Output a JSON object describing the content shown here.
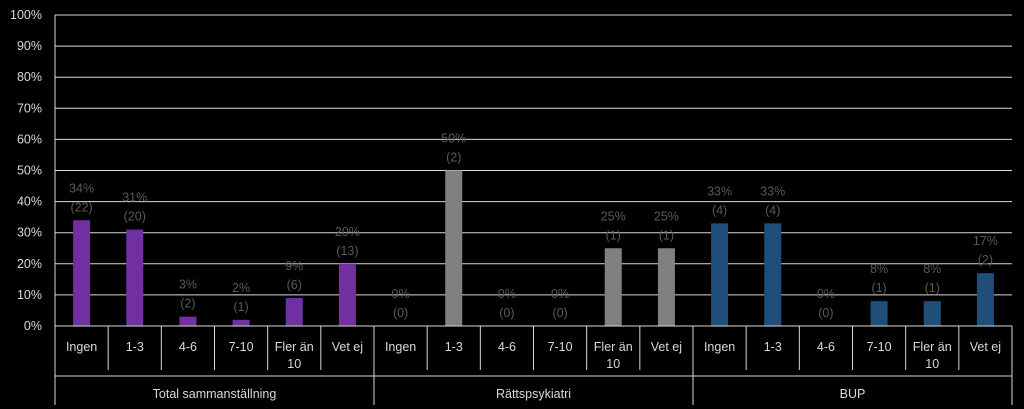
{
  "chart_data": {
    "type": "bar",
    "title": "",
    "xlabel": "",
    "ylabel": "",
    "ylim": [
      0,
      100
    ],
    "y_ticks": [
      "0%",
      "10%",
      "20%",
      "30%",
      "40%",
      "50%",
      "60%",
      "70%",
      "80%",
      "90%",
      "100%"
    ],
    "grid": true,
    "legend": "none",
    "groups": [
      {
        "name": "Total sammanställning",
        "color": "#7030a0",
        "categories": [
          "Ingen",
          "1-3",
          "4-6",
          "7-10",
          "Fler än\n10",
          "Vet ej"
        ],
        "values": [
          34,
          31,
          3,
          2,
          9,
          20
        ],
        "labels": [
          "34%",
          "31%",
          "3%",
          "2%",
          "9%",
          "20%"
        ],
        "counts": [
          "(22)",
          "(20)",
          "(2)",
          "(1)",
          "(6)",
          "(13)"
        ]
      },
      {
        "name": "Rättspsykiatri",
        "color": "#808080",
        "categories": [
          "Ingen",
          "1-3",
          "4-6",
          "7-10",
          "Fler än\n10",
          "Vet ej"
        ],
        "values": [
          0,
          50,
          0,
          0,
          25,
          25
        ],
        "labels": [
          "0%",
          "50%",
          "0%",
          "0%",
          "25%",
          "25%"
        ],
        "counts": [
          "(0)",
          "(2)",
          "(0)",
          "(0)",
          "(1)",
          "(1)"
        ]
      },
      {
        "name": "BUP",
        "color": "#1f4e79",
        "categories": [
          "Ingen",
          "1-3",
          "4-6",
          "7-10",
          "Fler än\n10",
          "Vet ej"
        ],
        "values": [
          33,
          33,
          0,
          8,
          8,
          17
        ],
        "labels": [
          "33%",
          "33%",
          "0%",
          "8%",
          "8%",
          "17%"
        ],
        "counts": [
          "(4)",
          "(4)",
          "(0)",
          "(1)",
          "(1)",
          "(2)"
        ]
      }
    ]
  }
}
